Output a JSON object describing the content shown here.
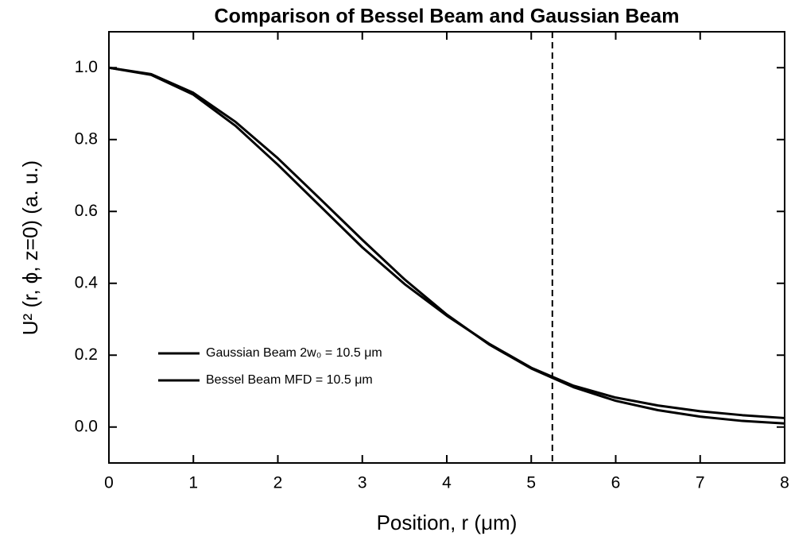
{
  "chart_data": {
    "type": "line",
    "title": "Comparison of Bessel Beam and Gaussian Beam",
    "x_label": "Position, r (μm)",
    "y_label": "U² (r, ϕ, z=0) (a. u.)",
    "x": [
      0,
      0.5,
      1,
      1.5,
      2,
      2.5,
      3,
      3.5,
      4,
      4.5,
      5,
      5.5,
      6,
      6.5,
      7,
      7.5,
      8
    ],
    "series": [
      {
        "name": "Gaussian Beam 2w₀ = 10.5 μm",
        "color": "#000000",
        "values": [
          1,
          0.982,
          0.93,
          0.849,
          0.748,
          0.635,
          0.521,
          0.411,
          0.313,
          0.23,
          0.163,
          0.111,
          0.073,
          0.047,
          0.029,
          0.017,
          0.01
        ]
      },
      {
        "name": "Bessel Beam MFD = 10.5 μm",
        "color": "#000000",
        "values": [
          1,
          0.98,
          0.925,
          0.838,
          0.73,
          0.615,
          0.5,
          0.398,
          0.31,
          0.232,
          0.165,
          0.115,
          0.082,
          0.06,
          0.044,
          0.033,
          0.025
        ]
      }
    ],
    "xlim": [
      0,
      8
    ],
    "xticks": [
      0,
      1,
      2,
      3,
      4,
      5,
      6,
      7,
      8
    ],
    "ylim": [
      -0.1,
      1.1
    ],
    "yticks": [
      {
        "value": 0,
        "label": "0.0"
      },
      0.2,
      0.4,
      0.6,
      0.8,
      {
        "value": 1,
        "label": "1.0"
      }
    ],
    "vline": 5.25,
    "grid": false,
    "legend": "lower left"
  }
}
